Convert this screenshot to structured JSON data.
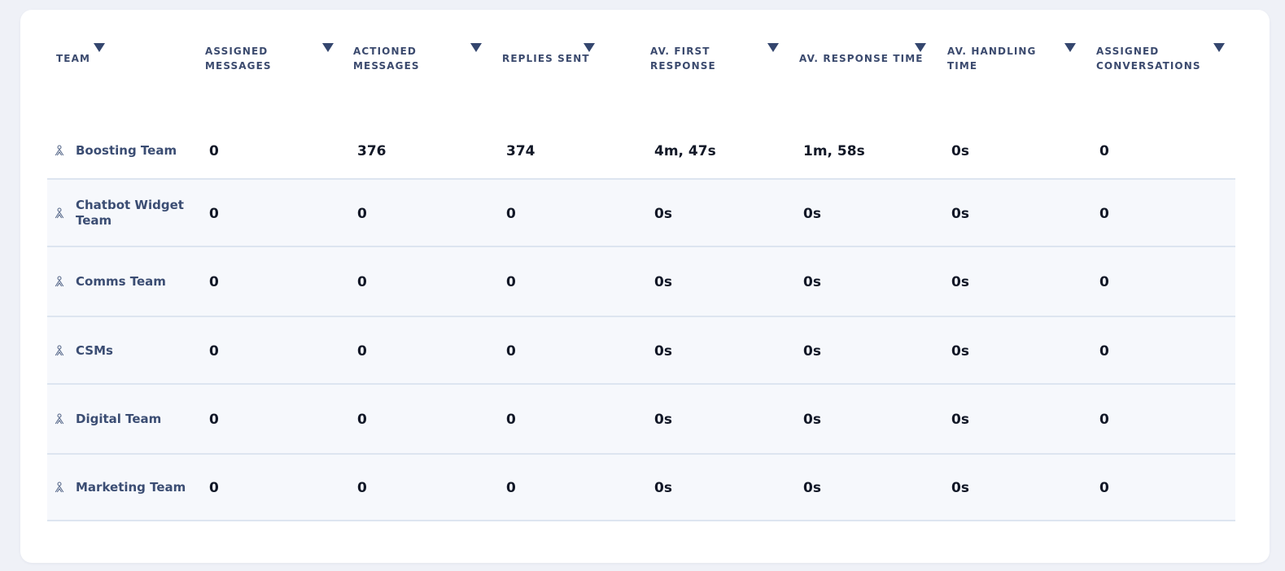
{
  "table": {
    "columns": [
      {
        "key": "team",
        "label": "TEAM"
      },
      {
        "key": "assigned_messages",
        "label": "ASSIGNED\nMESSAGES"
      },
      {
        "key": "actioned_messages",
        "label": "ACTIONED\nMESSAGES"
      },
      {
        "key": "replies_sent",
        "label": "REPLIES SENT"
      },
      {
        "key": "av_first_response",
        "label": "AV. FIRST\nRESPONSE"
      },
      {
        "key": "av_response_time",
        "label": "AV. RESPONSE TIME"
      },
      {
        "key": "av_handling_time",
        "label": "AV. HANDLING\nTIME"
      },
      {
        "key": "assigned_conversations",
        "label": "ASSIGNED\nCONVERSATIONS"
      }
    ],
    "rows": [
      {
        "team": "Boosting Team",
        "values": [
          "0",
          "376",
          "374",
          "4m, 47s",
          "1m, 58s",
          "0s",
          "0"
        ]
      },
      {
        "team": "Chatbot Widget\nTeam",
        "values": [
          "0",
          "0",
          "0",
          "0s",
          "0s",
          "0s",
          "0"
        ]
      },
      {
        "team": "Comms Team",
        "values": [
          "0",
          "0",
          "0",
          "0s",
          "0s",
          "0s",
          "0"
        ]
      },
      {
        "team": "CSMs",
        "values": [
          "0",
          "0",
          "0",
          "0s",
          "0s",
          "0s",
          "0"
        ]
      },
      {
        "team": "Digital Team",
        "values": [
          "0",
          "0",
          "0",
          "0s",
          "0s",
          "0s",
          "0"
        ]
      },
      {
        "team": "Marketing Team",
        "values": [
          "0",
          "0",
          "0",
          "0s",
          "0s",
          "0s",
          "0"
        ]
      }
    ]
  },
  "icons": {
    "sort": "caret-down-icon",
    "team": "team-icon"
  },
  "colors": {
    "header_text": "#3b4a6e",
    "team_text": "#3b4d73",
    "value_text": "#121827",
    "row_alt_background": "#f6f8fc",
    "row_divider": "#dde5f0",
    "page_background": "#eff1f7"
  }
}
